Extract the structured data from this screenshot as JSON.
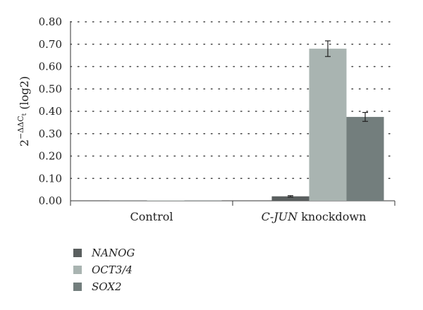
{
  "chart_data": {
    "type": "bar",
    "categories": [
      "Control",
      "C-JUN knockdown"
    ],
    "category_parts": [
      {
        "italic": "",
        "plain": "Control"
      },
      {
        "italic": "C-JUN",
        "plain": " knockdown"
      }
    ],
    "series": [
      {
        "name": "NANOG",
        "values": [
          0.0,
          0.02
        ],
        "errors": [
          0.0,
          0.003
        ],
        "color": "#5a5f5f"
      },
      {
        "name": "OCT3/4",
        "values": [
          0.0,
          0.68
        ],
        "errors": [
          0.0,
          0.035
        ],
        "color": "#a9b4b1"
      },
      {
        "name": "SOX2",
        "values": [
          0.0,
          0.375
        ],
        "errors": [
          0.0,
          0.02
        ],
        "color": "#737e7d"
      }
    ],
    "ylabel": "2^−ΔΔCt (log2)",
    "ylabel_parts": {
      "base": "2",
      "sup": "−ΔΔC",
      "sub": "t",
      "rest": " (log2)"
    },
    "ylim": [
      0,
      0.8
    ],
    "yticks": [
      "0.00",
      "0.10",
      "0.20",
      "0.30",
      "0.40",
      "0.50",
      "0.60",
      "0.70",
      "0.80"
    ],
    "grid": true,
    "legend_position": "bottom-left"
  }
}
